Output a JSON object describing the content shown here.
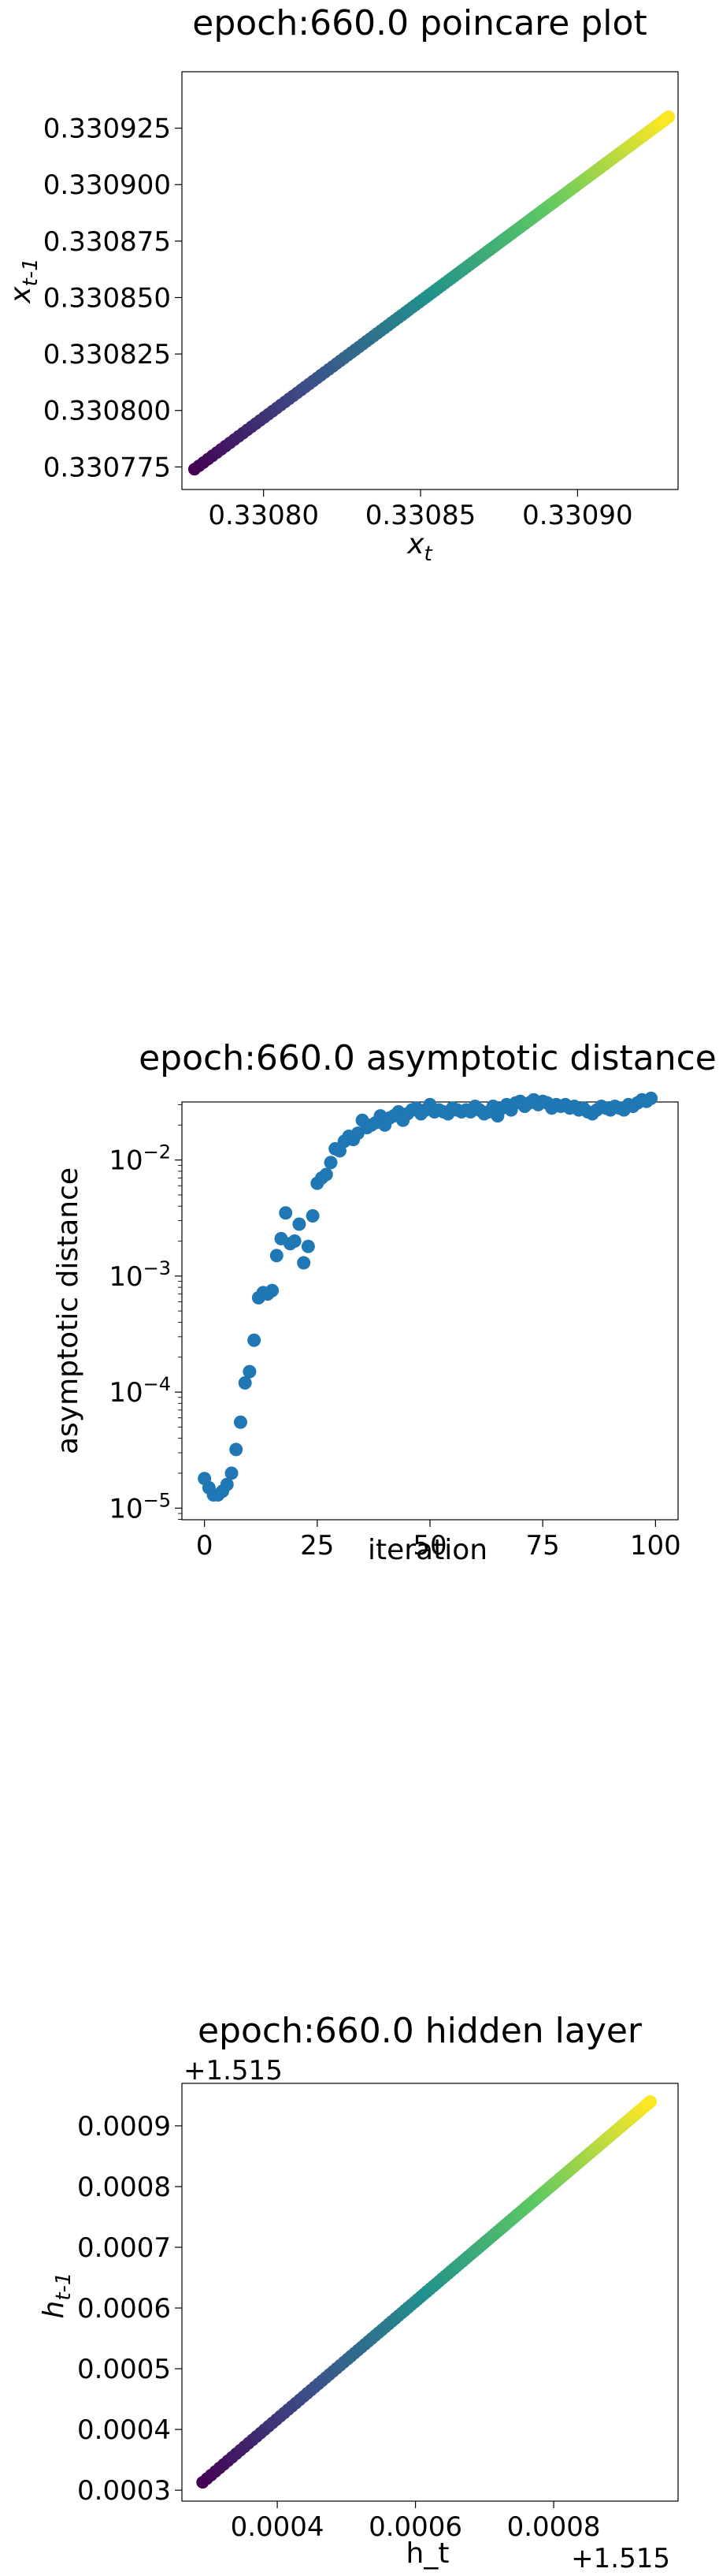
{
  "chart_data": [
    {
      "type": "scatter",
      "title": "epoch:660.0 poincare plot",
      "xlabel_main": "x",
      "xlabel_sub": "t",
      "ylabel_main": "x",
      "ylabel_sub": "t-1",
      "xlim": [
        0.330774,
        0.330932
      ],
      "ylim": [
        0.330765,
        0.33095
      ],
      "xticks": [
        0.3308,
        0.33085,
        0.3309
      ],
      "xtick_labels": [
        "0.33080",
        "0.33085",
        "0.33090"
      ],
      "yticks": [
        0.330775,
        0.3308,
        0.330825,
        0.33085,
        0.330875,
        0.3309,
        0.330925
      ],
      "ytick_labels": [
        "0.330775",
        "0.330800",
        "0.330825",
        "0.330850",
        "0.330875",
        "0.330900",
        "0.330925"
      ],
      "series_start": [
        0.330778,
        0.330774
      ],
      "series_end": [
        0.330929,
        0.33093
      ],
      "color_scale": "viridis",
      "grid": false
    },
    {
      "type": "scatter",
      "title": "epoch:660.0 asymptotic distance",
      "xlabel": "iteration",
      "ylabel": "asymptotic distance",
      "yscale": "log",
      "xlim": [
        -5,
        105
      ],
      "ylim_exp": [
        -5.1,
        -1.5
      ],
      "xticks": [
        0,
        25,
        50,
        75,
        100
      ],
      "xtick_labels": [
        "0",
        "25",
        "50",
        "75",
        "100"
      ],
      "ytick_exponents": [
        -5,
        -4,
        -3,
        -2
      ],
      "ytick_base": "10",
      "ytick_exp_labels": [
        "−5",
        "−4",
        "−3",
        "−2"
      ],
      "color": "#1f77b4",
      "grid": false,
      "x": [
        0,
        1,
        2,
        3,
        4,
        5,
        6,
        7,
        8,
        9,
        10,
        11,
        12,
        13,
        14,
        15,
        16,
        17,
        18,
        19,
        20,
        21,
        22,
        23,
        24,
        25,
        26,
        27,
        28,
        29,
        30,
        31,
        32,
        33,
        34,
        35,
        36,
        37,
        38,
        39,
        40,
        41,
        42,
        43,
        44,
        45,
        46,
        47,
        48,
        49,
        50,
        51,
        52,
        53,
        54,
        55,
        56,
        57,
        58,
        59,
        60,
        61,
        62,
        63,
        64,
        65,
        66,
        67,
        68,
        69,
        70,
        71,
        72,
        73,
        74,
        75,
        76,
        77,
        78,
        79,
        80,
        81,
        82,
        83,
        84,
        85,
        86,
        87,
        88,
        89,
        90,
        91,
        92,
        93,
        94,
        95,
        96,
        97,
        98,
        99
      ],
      "y": [
        1.8e-05,
        1.5e-05,
        1.3e-05,
        1.3e-05,
        1.4e-05,
        1.6e-05,
        2e-05,
        3.2e-05,
        5.5e-05,
        0.00012,
        0.00015,
        0.00028,
        0.00065,
        0.00072,
        0.0007,
        0.00075,
        0.0015,
        0.0021,
        0.0035,
        0.0019,
        0.002,
        0.0028,
        0.0013,
        0.0018,
        0.0033,
        0.0063,
        0.007,
        0.0075,
        0.0095,
        0.0125,
        0.012,
        0.0145,
        0.016,
        0.015,
        0.017,
        0.022,
        0.019,
        0.02,
        0.021,
        0.024,
        0.02,
        0.023,
        0.024,
        0.026,
        0.022,
        0.025,
        0.027,
        0.028,
        0.025,
        0.027,
        0.03,
        0.026,
        0.027,
        0.026,
        0.025,
        0.028,
        0.027,
        0.026,
        0.027,
        0.026,
        0.029,
        0.027,
        0.025,
        0.026,
        0.029,
        0.024,
        0.028,
        0.03,
        0.027,
        0.031,
        0.032,
        0.029,
        0.031,
        0.033,
        0.03,
        0.032,
        0.031,
        0.028,
        0.03,
        0.029,
        0.03,
        0.028,
        0.029,
        0.027,
        0.028,
        0.026,
        0.025,
        0.027,
        0.029,
        0.028,
        0.027,
        0.029,
        0.028,
        0.027,
        0.03,
        0.029,
        0.031,
        0.033,
        0.032,
        0.034
      ]
    },
    {
      "type": "scatter",
      "title": "epoch:660.0 hidden layer",
      "xlabel": "h_t",
      "ylabel_main": "h",
      "ylabel_sub": "t-1",
      "offset_x": "+1.515",
      "offset_y": "+1.515",
      "xlim": [
        0.000262,
        0.00098
      ],
      "ylim": [
        0.000282,
        0.00097
      ],
      "xticks": [
        0.0004,
        0.0006,
        0.0008
      ],
      "xtick_labels": [
        "0.0004",
        "0.0006",
        "0.0008"
      ],
      "yticks": [
        0.0003,
        0.0004,
        0.0005,
        0.0006,
        0.0007,
        0.0008,
        0.0009
      ],
      "ytick_labels": [
        "0.0003",
        "0.0004",
        "0.0005",
        "0.0006",
        "0.0007",
        "0.0008",
        "0.0009"
      ],
      "series_start": [
        0.000292,
        0.000313
      ],
      "series_end": [
        0.00094,
        0.00094
      ],
      "color_scale": "viridis",
      "grid": false
    }
  ]
}
